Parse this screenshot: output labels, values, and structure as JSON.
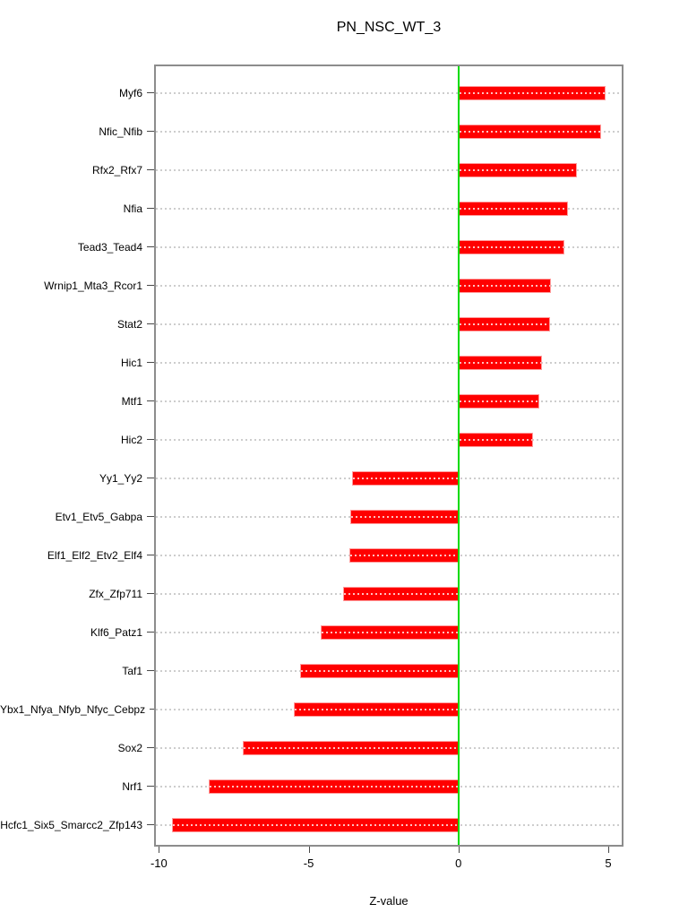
{
  "title": "PN_NSC_WT_3",
  "colors": {
    "bar": "#ff0000",
    "bar_border": "#ff9c9c",
    "zero_line": "#00dc00",
    "gridline": "#cdcdcd",
    "frame": "#8c8c8c",
    "tick": "#4a4a4a",
    "text": "#000000",
    "background": "#ffffff"
  },
  "chart_data": {
    "type": "bar",
    "orientation": "horizontal",
    "title": "PN_NSC_WT_3",
    "xlabel": "Z-value",
    "ylabel": "",
    "xlim": [
      -10.1,
      5.45
    ],
    "xticks": [
      -10,
      -5,
      0,
      5
    ],
    "xtick_labels": [
      "-10",
      "-5",
      "0",
      "5"
    ],
    "grid": "dotted-horizontal-per-category",
    "legend": "none",
    "zero_reference_line": 0,
    "categories": [
      "Myf6",
      "Nfic_Nfib",
      "Rfx2_Rfx7",
      "Nfia",
      "Tead3_Tead4",
      "Wrnip1_Mta3_Rcor1",
      "Stat2",
      "Hic1",
      "Mtf1",
      "Hic2",
      "Yy1_Yy2",
      "Etv1_Etv5_Gabpa",
      "Elf1_Elf2_Etv2_Elf4",
      "Zfx_Zfp711",
      "Klf6_Patz1",
      "Taf1",
      "Ybx1_Nfya_Nfyb_Nfyc_Cebpz",
      "Sox2",
      "Nrf1",
      "Hcfc1_Six5_Smarcc2_Zfp143"
    ],
    "values": [
      4.9,
      4.75,
      3.95,
      3.65,
      3.55,
      3.1,
      3.05,
      2.8,
      2.7,
      2.5,
      -3.55,
      -3.6,
      -3.65,
      -3.85,
      -4.6,
      -5.3,
      -5.5,
      -7.2,
      -8.35,
      -9.55
    ]
  }
}
